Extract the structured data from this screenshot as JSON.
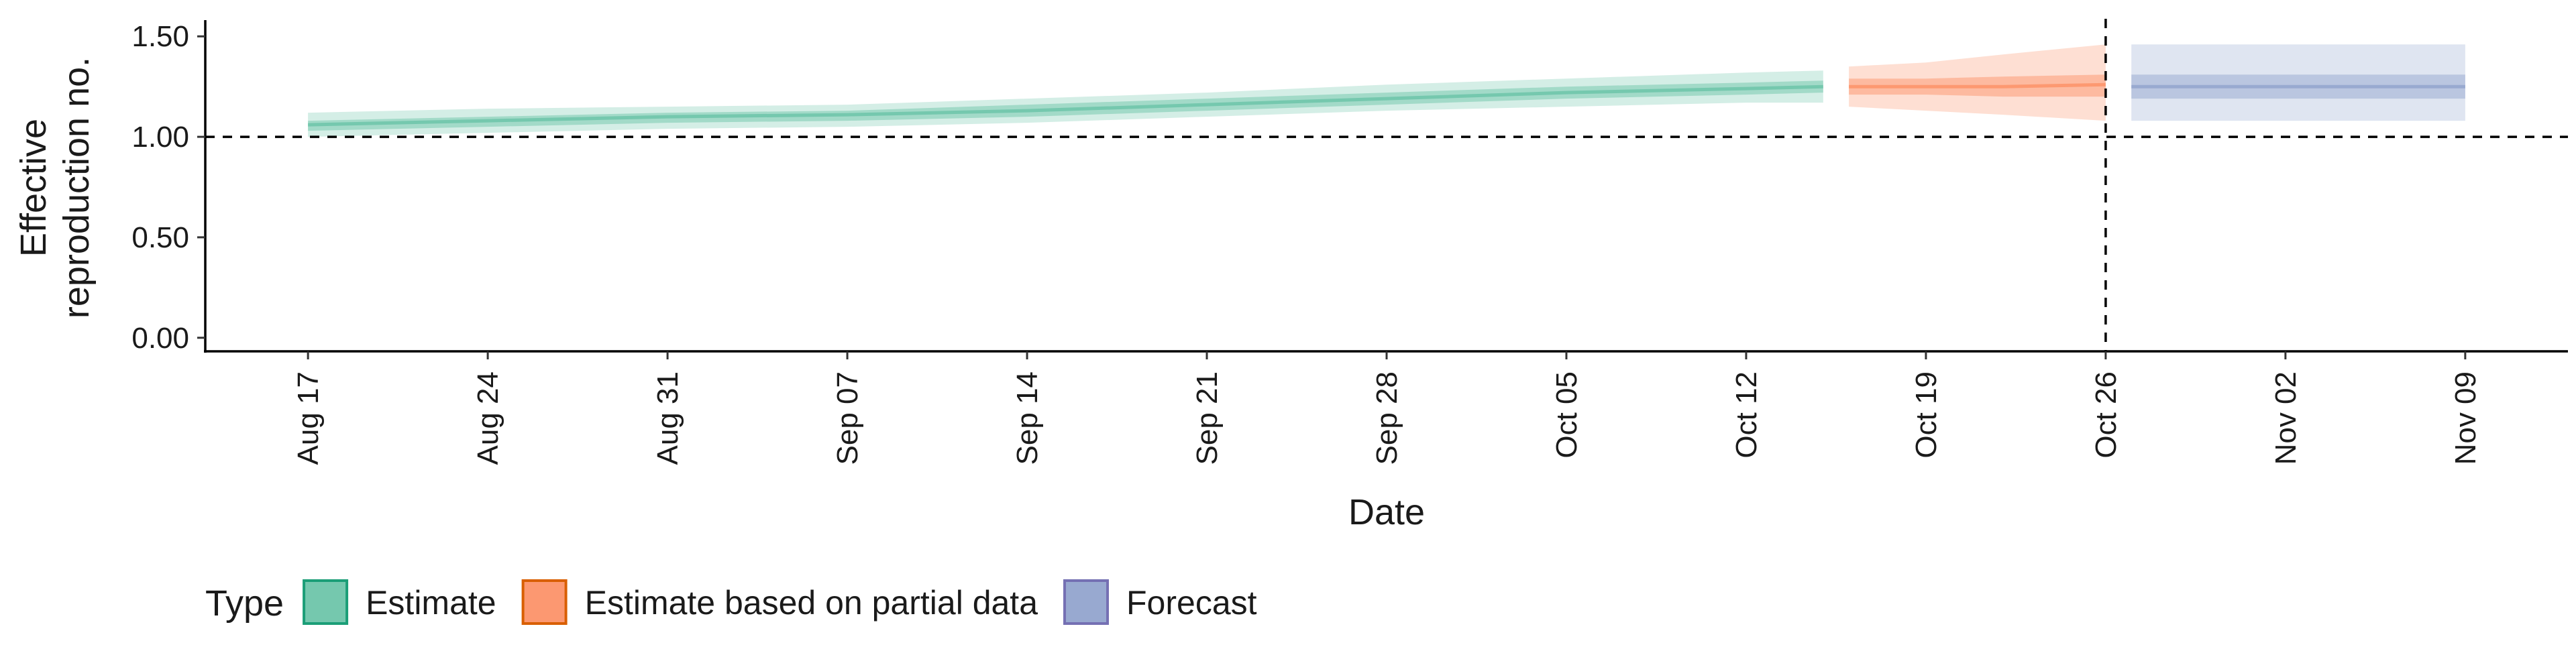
{
  "chart_data": {
    "type": "area",
    "xlabel": "Date",
    "ylabel_lines": [
      "Effective",
      "reproduction no."
    ],
    "ylim": [
      0,
      1.5
    ],
    "y_ticks": [
      0.0,
      0.5,
      1.0,
      1.5
    ],
    "y_tick_labels": [
      "0.00",
      "0.50",
      "1.00",
      "1.50"
    ],
    "xlim": [
      "2020-08-13",
      "2020-11-13"
    ],
    "x_ticks": [
      "2020-08-17",
      "2020-08-24",
      "2020-08-31",
      "2020-09-07",
      "2020-09-14",
      "2020-09-21",
      "2020-09-28",
      "2020-10-05",
      "2020-10-12",
      "2020-10-19",
      "2020-10-26",
      "2020-11-02",
      "2020-11-09"
    ],
    "x_tick_labels": [
      "Aug 17",
      "Aug 24",
      "Aug 31",
      "Sep 07",
      "Sep 14",
      "Sep 21",
      "Sep 28",
      "Oct 05",
      "Oct 12",
      "Oct 19",
      "Oct 26",
      "Nov 02",
      "Nov 09"
    ],
    "reference_hline": 1.0,
    "reference_vline": "2020-10-26",
    "legend_title": "Type",
    "legend_position": "bottom-left",
    "series": [
      {
        "name": "Estimate",
        "color": "#1b9e77",
        "fill": "#66c2a5",
        "points": [
          {
            "date": "2020-08-17",
            "median": 1.06,
            "lower_50": 1.03,
            "upper_50": 1.08,
            "lower_90": 1.0,
            "upper_90": 1.12
          },
          {
            "date": "2020-08-24",
            "median": 1.08,
            "lower_50": 1.05,
            "upper_50": 1.1,
            "lower_90": 1.02,
            "upper_90": 1.14
          },
          {
            "date": "2020-08-31",
            "median": 1.1,
            "lower_50": 1.07,
            "upper_50": 1.12,
            "lower_90": 1.04,
            "upper_90": 1.15
          },
          {
            "date": "2020-09-07",
            "median": 1.11,
            "lower_50": 1.08,
            "upper_50": 1.13,
            "lower_90": 1.05,
            "upper_90": 1.16
          },
          {
            "date": "2020-09-14",
            "median": 1.13,
            "lower_50": 1.1,
            "upper_50": 1.16,
            "lower_90": 1.07,
            "upper_90": 1.19
          },
          {
            "date": "2020-09-21",
            "median": 1.16,
            "lower_50": 1.13,
            "upper_50": 1.19,
            "lower_90": 1.1,
            "upper_90": 1.22
          },
          {
            "date": "2020-09-28",
            "median": 1.19,
            "lower_50": 1.16,
            "upper_50": 1.22,
            "lower_90": 1.13,
            "upper_90": 1.26
          },
          {
            "date": "2020-10-05",
            "median": 1.22,
            "lower_50": 1.19,
            "upper_50": 1.25,
            "lower_90": 1.15,
            "upper_90": 1.29
          },
          {
            "date": "2020-10-12",
            "median": 1.24,
            "lower_50": 1.21,
            "upper_50": 1.27,
            "lower_90": 1.17,
            "upper_90": 1.32
          },
          {
            "date": "2020-10-15",
            "median": 1.25,
            "lower_50": 1.22,
            "upper_50": 1.28,
            "lower_90": 1.17,
            "upper_90": 1.33
          }
        ]
      },
      {
        "name": "Estimate based on partial data",
        "color": "#d95f02",
        "fill": "#fc8d62",
        "points": [
          {
            "date": "2020-10-16",
            "median": 1.25,
            "lower_50": 1.21,
            "upper_50": 1.29,
            "lower_90": 1.15,
            "upper_90": 1.35
          },
          {
            "date": "2020-10-19",
            "median": 1.25,
            "lower_50": 1.21,
            "upper_50": 1.29,
            "lower_90": 1.13,
            "upper_90": 1.37
          },
          {
            "date": "2020-10-22",
            "median": 1.25,
            "lower_50": 1.2,
            "upper_50": 1.3,
            "lower_90": 1.11,
            "upper_90": 1.41
          },
          {
            "date": "2020-10-26",
            "median": 1.26,
            "lower_50": 1.2,
            "upper_50": 1.31,
            "lower_90": 1.08,
            "upper_90": 1.46
          }
        ]
      },
      {
        "name": "Forecast",
        "color": "#7570b3",
        "fill": "#8da0cb",
        "points": [
          {
            "date": "2020-10-27",
            "median": 1.25,
            "lower_50": 1.19,
            "upper_50": 1.31,
            "lower_90": 1.08,
            "upper_90": 1.46
          },
          {
            "date": "2020-11-09",
            "median": 1.25,
            "lower_50": 1.19,
            "upper_50": 1.31,
            "lower_90": 1.08,
            "upper_90": 1.46
          }
        ]
      }
    ]
  }
}
